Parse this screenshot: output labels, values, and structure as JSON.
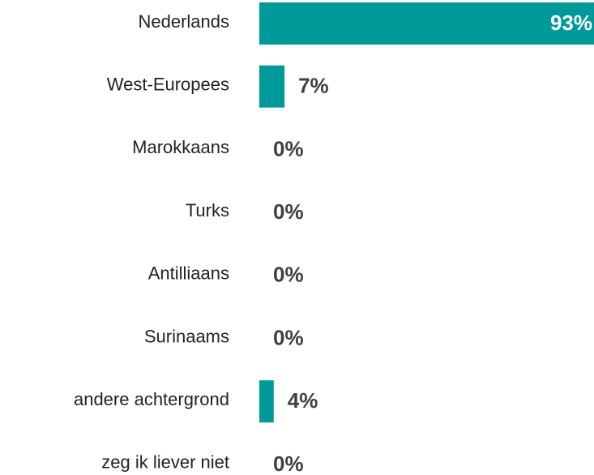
{
  "chart_data": {
    "type": "bar",
    "orientation": "horizontal",
    "categories": [
      "Nederlands",
      "West-Europees",
      "Marokkaans",
      "Turks",
      "Antilliaans",
      "Surinaams",
      "andere achtergrond",
      "zeg ik liever niet"
    ],
    "values": [
      93,
      7,
      0,
      0,
      0,
      0,
      4,
      0
    ],
    "value_labels": [
      "93%",
      "7%",
      "0%",
      "0%",
      "0%",
      "0%",
      "4%",
      "0%"
    ],
    "color": "#009999"
  }
}
